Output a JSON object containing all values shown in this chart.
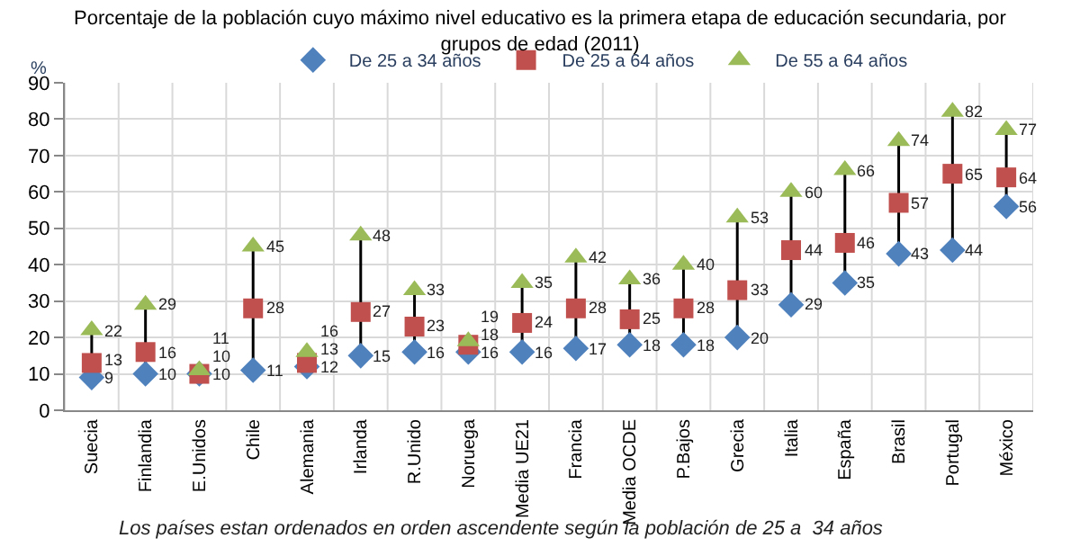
{
  "chart_data": {
    "type": "scatter",
    "title": "Porcentaje de la población cuyo máximo nivel educativo es la primera etapa de educación secundaria, por grupos de edad (2011)",
    "ylabel": "%",
    "categories": [
      "Suecia",
      "Finlandia",
      "E.Unidos",
      "Chile",
      "Alemania",
      "Irlanda",
      "R.Unido",
      "Noruega",
      "Media UE21",
      "Francia",
      "Media OCDE",
      "P.Bajos",
      "Grecia",
      "Italia",
      "España",
      "Brasil",
      "Portugal",
      "México"
    ],
    "series": [
      {
        "name": "De 25 a 34 años",
        "color": "#4f81bd",
        "marker": "diamond",
        "values": [
          9,
          10,
          10,
          11,
          12,
          15,
          16,
          16,
          16,
          17,
          18,
          18,
          20,
          29,
          35,
          43,
          44,
          56
        ]
      },
      {
        "name": "De 25 a 64 años",
        "color": "#c0504d",
        "marker": "square",
        "values": [
          13,
          16,
          10,
          28,
          13,
          27,
          23,
          18,
          24,
          28,
          25,
          28,
          33,
          44,
          46,
          57,
          65,
          64
        ]
      },
      {
        "name": "De 55 a 64 años",
        "color": "#9bbb59",
        "marker": "triangle",
        "values": [
          22,
          29,
          11,
          45,
          16,
          48,
          33,
          19,
          35,
          42,
          36,
          40,
          53,
          60,
          66,
          74,
          82,
          77
        ]
      }
    ],
    "ylim": [
      0,
      90
    ],
    "yticks": [
      0,
      10,
      20,
      30,
      40,
      50,
      60,
      70,
      80,
      90
    ],
    "grid": true,
    "legend": "top",
    "data_labels": true,
    "annotations": [
      "Los países estan ordenados en orden ascendente según la población de 25 a  34 años"
    ]
  }
}
